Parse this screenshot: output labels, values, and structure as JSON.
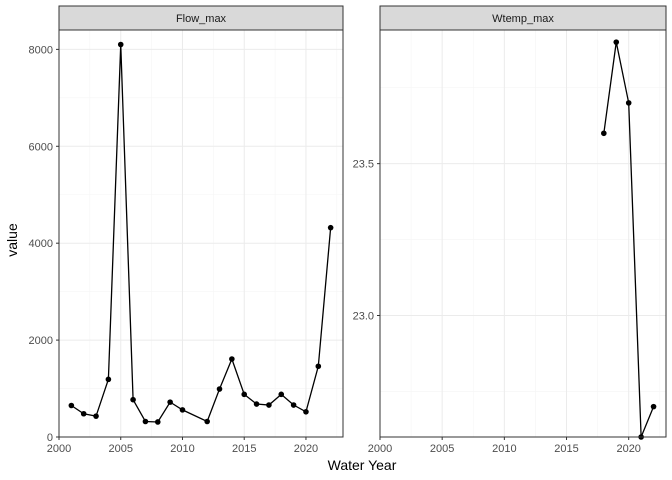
{
  "chart_data": {
    "type": "line",
    "xlabel": "Water Year",
    "ylabel": "value",
    "panels": [
      {
        "name": "Flow_max",
        "xlim": [
          2000,
          2023
        ],
        "ylim": [
          0,
          8400
        ],
        "x_ticks": [
          2000,
          2005,
          2010,
          2015,
          2020
        ],
        "y_ticks": [
          0,
          2000,
          4000,
          6000,
          8000
        ],
        "y_tick_labels": [
          "0",
          "2000",
          "4000",
          "6000",
          "8000"
        ],
        "points": [
          {
            "x": 2001,
            "y": 650
          },
          {
            "x": 2002,
            "y": 480
          },
          {
            "x": 2003,
            "y": 430
          },
          {
            "x": 2004,
            "y": 1190
          },
          {
            "x": 2005,
            "y": 8100
          },
          {
            "x": 2006,
            "y": 770
          },
          {
            "x": 2007,
            "y": 320
          },
          {
            "x": 2008,
            "y": 310
          },
          {
            "x": 2009,
            "y": 720
          },
          {
            "x": 2010,
            "y": 560
          },
          {
            "x": 2012,
            "y": 320
          },
          {
            "x": 2013,
            "y": 990
          },
          {
            "x": 2014,
            "y": 1610
          },
          {
            "x": 2015,
            "y": 880
          },
          {
            "x": 2016,
            "y": 680
          },
          {
            "x": 2017,
            "y": 660
          },
          {
            "x": 2018,
            "y": 880
          },
          {
            "x": 2019,
            "y": 660
          },
          {
            "x": 2020,
            "y": 520
          },
          {
            "x": 2021,
            "y": 1460
          },
          {
            "x": 2022,
            "y": 4320
          }
        ]
      },
      {
        "name": "Wtemp_max",
        "xlim": [
          2000,
          2023
        ],
        "ylim": [
          22.6,
          23.94
        ],
        "x_ticks": [
          2000,
          2005,
          2010,
          2015,
          2020
        ],
        "y_ticks": [
          23.0,
          23.5
        ],
        "y_tick_labels": [
          "23.0",
          "23.5"
        ],
        "points": [
          {
            "x": 2018,
            "y": 23.6
          },
          {
            "x": 2019,
            "y": 23.9
          },
          {
            "x": 2020,
            "y": 23.7
          },
          {
            "x": 2021,
            "y": 22.6
          },
          {
            "x": 2022,
            "y": 22.7
          }
        ]
      }
    ],
    "grid": true,
    "colors": {
      "background": "#ffffff",
      "strip_fill": "#d9d9d9",
      "strip_border": "#333333",
      "panel_border": "#333333",
      "grid_major": "#ebebeb",
      "grid_minor": "#f5f5f5",
      "line": "#000000",
      "point": "#000000"
    }
  }
}
